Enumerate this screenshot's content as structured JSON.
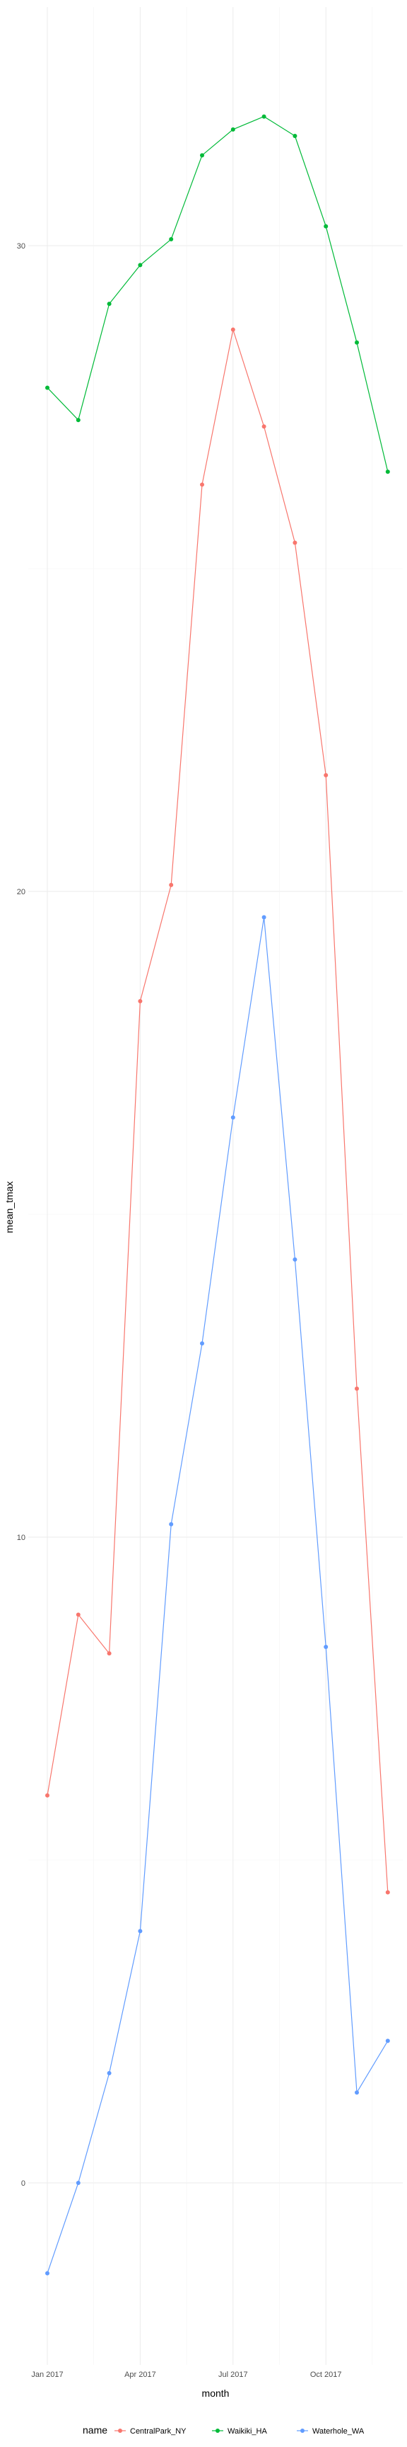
{
  "chart_data": {
    "type": "line",
    "xlabel": "month",
    "ylabel": "mean_tmax",
    "x": [
      "2017-01",
      "2017-02",
      "2017-03",
      "2017-04",
      "2017-05",
      "2017-06",
      "2017-07",
      "2017-08",
      "2017-09",
      "2017-10",
      "2017-11",
      "2017-12"
    ],
    "x_ticks": [
      {
        "value": "2017-01",
        "label": "Jan 2017"
      },
      {
        "value": "2017-04",
        "label": "Apr 2017"
      },
      {
        "value": "2017-07",
        "label": "Jul 2017"
      },
      {
        "value": "2017-10",
        "label": "Oct 2017"
      }
    ],
    "y_ticks": [
      0,
      10,
      20,
      30
    ],
    "ylim": [
      -2.9,
      34.8
    ],
    "grid": true,
    "legend_position": "bottom",
    "legend_title": "name",
    "series": [
      {
        "name": "CentralPark_NY",
        "color": "#F8766D",
        "values": [
          6.0,
          8.8,
          8.2,
          18.3,
          20.1,
          26.3,
          28.7,
          27.2,
          25.4,
          21.8,
          12.3,
          4.5
        ]
      },
      {
        "name": "Waikiki_HA",
        "color": "#00BA38",
        "values": [
          27.8,
          27.3,
          29.1,
          29.7,
          30.1,
          31.4,
          31.8,
          32.0,
          31.7,
          30.3,
          28.5,
          26.5
        ]
      },
      {
        "name": "Waterhole_WA",
        "color": "#619CFF",
        "values": [
          -1.4,
          0.0,
          1.7,
          3.9,
          10.2,
          13.0,
          16.5,
          19.6,
          14.3,
          8.3,
          1.4,
          2.2
        ]
      }
    ]
  }
}
